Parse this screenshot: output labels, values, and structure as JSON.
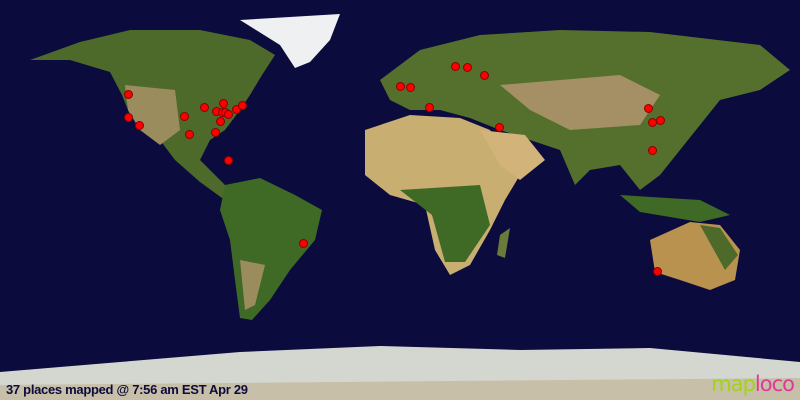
{
  "map": {
    "status_text": "37 places mapped @ 7:56 am EST Apr 29",
    "place_count": 37,
    "logo": {
      "part1": "map",
      "part2": "loco"
    },
    "colors": {
      "ocean": "#0b0b3d",
      "marker": "#ff0000",
      "logo_green": "#a4d21a",
      "logo_pink": "#e2389a"
    }
  }
}
